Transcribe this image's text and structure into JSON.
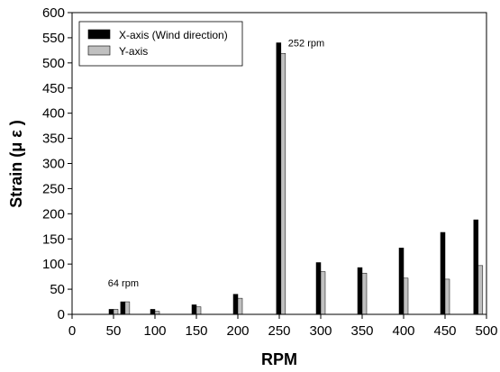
{
  "chart_data": {
    "type": "bar",
    "xlabel": "RPM",
    "ylabel": "Strain (μ ε )",
    "xlim": [
      0,
      500
    ],
    "ylim": [
      0,
      600
    ],
    "xticks": [
      0,
      50,
      100,
      150,
      200,
      250,
      300,
      350,
      400,
      450,
      500
    ],
    "yticks": [
      0,
      50,
      100,
      150,
      200,
      250,
      300,
      350,
      400,
      450,
      500,
      550,
      600
    ],
    "grid": false,
    "legend_position": "top-left",
    "series": [
      {
        "name": "X-axis (Wind direction)",
        "color": "#000000",
        "points": [
          {
            "x": 50,
            "y": 10
          },
          {
            "x": 64,
            "y": 25
          },
          {
            "x": 100,
            "y": 10
          },
          {
            "x": 150,
            "y": 19
          },
          {
            "x": 200,
            "y": 40
          },
          {
            "x": 252,
            "y": 540
          },
          {
            "x": 300,
            "y": 103
          },
          {
            "x": 350,
            "y": 93
          },
          {
            "x": 400,
            "y": 132
          },
          {
            "x": 450,
            "y": 163
          },
          {
            "x": 490,
            "y": 188
          }
        ]
      },
      {
        "name": "Y-axis",
        "color": "#c0c0c0",
        "points": [
          {
            "x": 50,
            "y": 10
          },
          {
            "x": 64,
            "y": 25
          },
          {
            "x": 100,
            "y": 6
          },
          {
            "x": 150,
            "y": 15
          },
          {
            "x": 200,
            "y": 32
          },
          {
            "x": 252,
            "y": 519
          },
          {
            "x": 300,
            "y": 85
          },
          {
            "x": 350,
            "y": 82
          },
          {
            "x": 400,
            "y": 72
          },
          {
            "x": 450,
            "y": 70
          },
          {
            "x": 490,
            "y": 97
          }
        ]
      }
    ],
    "annotations": [
      {
        "text": "64 rpm",
        "x": 64,
        "y": 25
      },
      {
        "text": "252 rpm",
        "x": 252,
        "y": 540
      }
    ]
  }
}
